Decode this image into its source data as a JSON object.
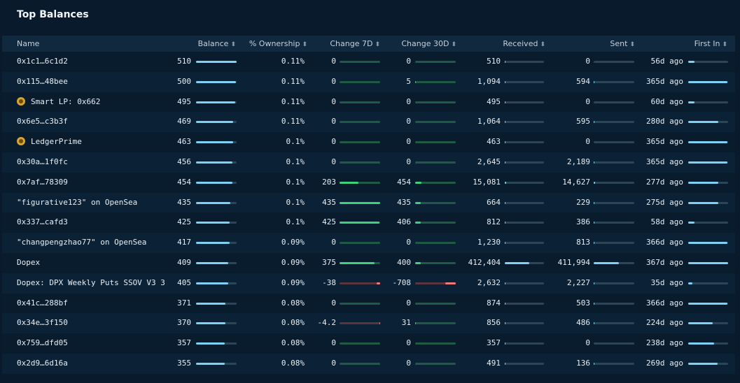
{
  "title": "Top Balances",
  "columns": {
    "name": "Name",
    "balance": "Balance",
    "ownership": "% Ownership",
    "change7d": "Change 7D",
    "change30d": "Change 30D",
    "received": "Received",
    "sent": "Sent",
    "first_in": "First In"
  },
  "sort_icon": "sort-icon",
  "colors": {
    "bar_blue": "#7fd0f5",
    "bar_green": "#3fd07b",
    "bar_red": "#f07a7a",
    "track": "#2c4557"
  },
  "rows": [
    {
      "name": "0x1c1…6c1d2",
      "icon": false,
      "balance": "510",
      "balance_frac": 1.0,
      "ownership": "0.11%",
      "change7d": "0",
      "c7_frac": 0,
      "c7_sign": "pos",
      "change30d": "0",
      "c30_frac": 0,
      "c30_sign": "pos",
      "received": "510",
      "received_frac": 0.01,
      "sent": "0",
      "sent_frac": 0,
      "first_in": "56d ago",
      "first_in_frac": 0.15
    },
    {
      "name": "0x115…48bee",
      "icon": false,
      "balance": "500",
      "balance_frac": 0.98,
      "ownership": "0.11%",
      "change7d": "0",
      "c7_frac": 0,
      "c7_sign": "pos",
      "change30d": "5",
      "c30_frac": 0.01,
      "c30_sign": "pos",
      "received": "1,094",
      "received_frac": 0.01,
      "sent": "594",
      "sent_frac": 0.01,
      "first_in": "365d ago",
      "first_in_frac": 0.99
    },
    {
      "name": "Smart LP: 0x662",
      "icon": true,
      "balance": "495",
      "balance_frac": 0.97,
      "ownership": "0.11%",
      "change7d": "0",
      "c7_frac": 0,
      "c7_sign": "pos",
      "change30d": "0",
      "c30_frac": 0,
      "c30_sign": "pos",
      "received": "495",
      "received_frac": 0.01,
      "sent": "0",
      "sent_frac": 0,
      "first_in": "60d ago",
      "first_in_frac": 0.16
    },
    {
      "name": "0x6e5…c3b3f",
      "icon": false,
      "balance": "469",
      "balance_frac": 0.92,
      "ownership": "0.11%",
      "change7d": "0",
      "c7_frac": 0,
      "c7_sign": "pos",
      "change30d": "0",
      "c30_frac": 0,
      "c30_sign": "pos",
      "received": "1,064",
      "received_frac": 0.01,
      "sent": "595",
      "sent_frac": 0.01,
      "first_in": "280d ago",
      "first_in_frac": 0.76
    },
    {
      "name": "LedgerPrime",
      "icon": true,
      "balance": "463",
      "balance_frac": 0.91,
      "ownership": "0.1%",
      "change7d": "0",
      "c7_frac": 0,
      "c7_sign": "pos",
      "change30d": "0",
      "c30_frac": 0,
      "c30_sign": "pos",
      "received": "463",
      "received_frac": 0.01,
      "sent": "0",
      "sent_frac": 0,
      "first_in": "365d ago",
      "first_in_frac": 0.99
    },
    {
      "name": "0x30a…1f0fc",
      "icon": false,
      "balance": "456",
      "balance_frac": 0.89,
      "ownership": "0.1%",
      "change7d": "0",
      "c7_frac": 0,
      "c7_sign": "pos",
      "change30d": "0",
      "c30_frac": 0,
      "c30_sign": "pos",
      "received": "2,645",
      "received_frac": 0.01,
      "sent": "2,189",
      "sent_frac": 0.01,
      "first_in": "365d ago",
      "first_in_frac": 0.99
    },
    {
      "name": "0x7af…78309",
      "icon": false,
      "balance": "454",
      "balance_frac": 0.89,
      "ownership": "0.1%",
      "change7d": "203",
      "c7_frac": 0.47,
      "c7_sign": "pos",
      "change30d": "454",
      "c30_frac": 0.15,
      "c30_sign": "pos",
      "received": "15,081",
      "received_frac": 0.04,
      "sent": "14,627",
      "sent_frac": 0.04,
      "first_in": "277d ago",
      "first_in_frac": 0.75
    },
    {
      "name": "\"figurative123\" on OpenSea",
      "icon": false,
      "balance": "435",
      "balance_frac": 0.85,
      "ownership": "0.1%",
      "change7d": "435",
      "c7_frac": 1.0,
      "c7_sign": "pos",
      "change30d": "435",
      "c30_frac": 0.14,
      "c30_sign": "pos",
      "received": "664",
      "received_frac": 0.01,
      "sent": "229",
      "sent_frac": 0.01,
      "first_in": "275d ago",
      "first_in_frac": 0.75
    },
    {
      "name": "0x337…cafd3",
      "icon": false,
      "balance": "425",
      "balance_frac": 0.83,
      "ownership": "0.1%",
      "change7d": "425",
      "c7_frac": 0.98,
      "c7_sign": "pos",
      "change30d": "406",
      "c30_frac": 0.13,
      "c30_sign": "pos",
      "received": "812",
      "received_frac": 0.01,
      "sent": "386",
      "sent_frac": 0.01,
      "first_in": "58d ago",
      "first_in_frac": 0.16
    },
    {
      "name": "\"changpengzhao77\" on OpenSea",
      "icon": false,
      "balance": "417",
      "balance_frac": 0.82,
      "ownership": "0.09%",
      "change7d": "0",
      "c7_frac": 0,
      "c7_sign": "pos",
      "change30d": "0",
      "c30_frac": 0,
      "c30_sign": "pos",
      "received": "1,230",
      "received_frac": 0.01,
      "sent": "813",
      "sent_frac": 0.01,
      "first_in": "366d ago",
      "first_in_frac": 0.99
    },
    {
      "name": "Dopex",
      "icon": false,
      "balance": "409",
      "balance_frac": 0.8,
      "ownership": "0.09%",
      "change7d": "375",
      "c7_frac": 0.86,
      "c7_sign": "pos",
      "change30d": "400",
      "c30_frac": 0.13,
      "c30_sign": "pos",
      "received": "412,404",
      "received_frac": 0.62,
      "sent": "411,994",
      "sent_frac": 0.62,
      "first_in": "367d ago",
      "first_in_frac": 1.0
    },
    {
      "name": "Dopex: DPX Weekly Puts SSOV V3 3",
      "icon": false,
      "balance": "405",
      "balance_frac": 0.79,
      "ownership": "0.09%",
      "change7d": "-38",
      "c7_frac": 0.09,
      "c7_sign": "neg",
      "change30d": "-708",
      "c30_frac": 0.25,
      "c30_sign": "neg",
      "received": "2,632",
      "received_frac": 0.01,
      "sent": "2,227",
      "sent_frac": 0.01,
      "first_in": "35d ago",
      "first_in_frac": 0.1
    },
    {
      "name": "0x41c…288bf",
      "icon": false,
      "balance": "371",
      "balance_frac": 0.73,
      "ownership": "0.08%",
      "change7d": "0",
      "c7_frac": 0,
      "c7_sign": "pos",
      "change30d": "0",
      "c30_frac": 0,
      "c30_sign": "pos",
      "received": "874",
      "received_frac": 0.01,
      "sent": "503",
      "sent_frac": 0.01,
      "first_in": "366d ago",
      "first_in_frac": 0.99
    },
    {
      "name": "0x34e…3f150",
      "icon": false,
      "balance": "370",
      "balance_frac": 0.73,
      "ownership": "0.08%",
      "change7d": "-4.2",
      "c7_frac": 0.01,
      "c7_sign": "neg",
      "change30d": "31",
      "c30_frac": 0.01,
      "c30_sign": "pos",
      "received": "856",
      "received_frac": 0.01,
      "sent": "486",
      "sent_frac": 0.01,
      "first_in": "224d ago",
      "first_in_frac": 0.61
    },
    {
      "name": "0x759…dfd05",
      "icon": false,
      "balance": "357",
      "balance_frac": 0.7,
      "ownership": "0.08%",
      "change7d": "0",
      "c7_frac": 0,
      "c7_sign": "pos",
      "change30d": "0",
      "c30_frac": 0,
      "c30_sign": "pos",
      "received": "357",
      "received_frac": 0.01,
      "sent": "0",
      "sent_frac": 0,
      "first_in": "238d ago",
      "first_in_frac": 0.65
    },
    {
      "name": "0x2d9…6d16a",
      "icon": false,
      "balance": "355",
      "balance_frac": 0.7,
      "ownership": "0.08%",
      "change7d": "0",
      "c7_frac": 0,
      "c7_sign": "pos",
      "change30d": "0",
      "c30_frac": 0,
      "c30_sign": "pos",
      "received": "491",
      "received_frac": 0.01,
      "sent": "136",
      "sent_frac": 0.01,
      "first_in": "269d ago",
      "first_in_frac": 0.73
    }
  ]
}
